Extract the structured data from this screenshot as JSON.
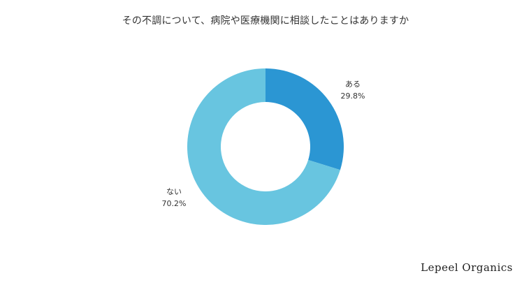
{
  "chart_data": {
    "type": "pie",
    "title": "その不調について、病院や医療機関に相談したことはありますか",
    "categories": [
      "ある",
      "ない"
    ],
    "values": [
      29.8,
      70.2
    ],
    "value_labels": [
      "29.8%",
      "70.2%"
    ],
    "colors": [
      "#2b96d3",
      "#68c5e0"
    ],
    "donut": true,
    "legend": "none"
  },
  "brand": "Lepeel Organics"
}
